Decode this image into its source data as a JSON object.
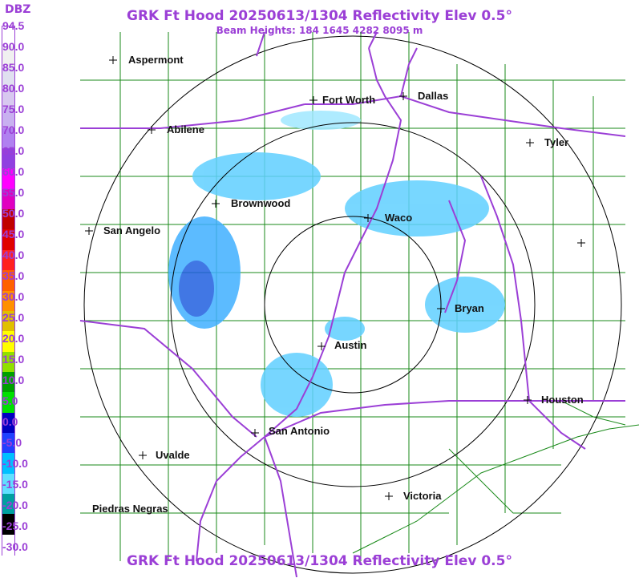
{
  "header": {
    "title": "GRK Ft Hood 20250613/1304 Reflectivity Elev 0.5°",
    "beam_heights": "Beam Heights: 184 1645 4282 8095 m",
    "footer_title": "GRK Ft Hood 20250613/1304 Reflectivity Elev 0.5°"
  },
  "legend": {
    "unit": "DBZ",
    "ticks": [
      "94.5",
      "90.0",
      "85.0",
      "80.0",
      "75.0",
      "70.0",
      "65.0",
      "60.0",
      "55.0",
      "50.0",
      "45.0",
      "40.0",
      "35.0",
      "30.0",
      "25.0",
      "20.0",
      "15.0",
      "10.0",
      "5.0",
      "0.0",
      "-5.0",
      "-10.0",
      "-15.0",
      "-20.0",
      "-25.0",
      "-30.0"
    ],
    "colors": [
      "#ffffff",
      "#f0f0f0",
      "#e0e0f0",
      "#d8c8f0",
      "#c8b0f0",
      "#b080f0",
      "#9040e0",
      "#ff00ff",
      "#e000c0",
      "#c00000",
      "#e00000",
      "#ff2020",
      "#ff6000",
      "#ff9000",
      "#e0c000",
      "#ffff00",
      "#90e000",
      "#00a000",
      "#00e000",
      "#0000c0",
      "#2040ff",
      "#00c0ff",
      "#60e0ff",
      "#00a0a0",
      "#000000",
      "#ffffff"
    ]
  },
  "map": {
    "cities": [
      {
        "name": "Aspermont"
      },
      {
        "name": "Fort Worth"
      },
      {
        "name": "Dallas"
      },
      {
        "name": "Abilene"
      },
      {
        "name": "Tyler"
      },
      {
        "name": "Brownwood"
      },
      {
        "name": "Waco"
      },
      {
        "name": "San Angelo"
      },
      {
        "name": "Bryan"
      },
      {
        "name": "Austin"
      },
      {
        "name": "Houston"
      },
      {
        "name": "San Antonio"
      },
      {
        "name": "Uvalde"
      },
      {
        "name": "Victoria"
      },
      {
        "name": "Piedras Negras"
      },
      {
        "name": ""
      }
    ]
  }
}
